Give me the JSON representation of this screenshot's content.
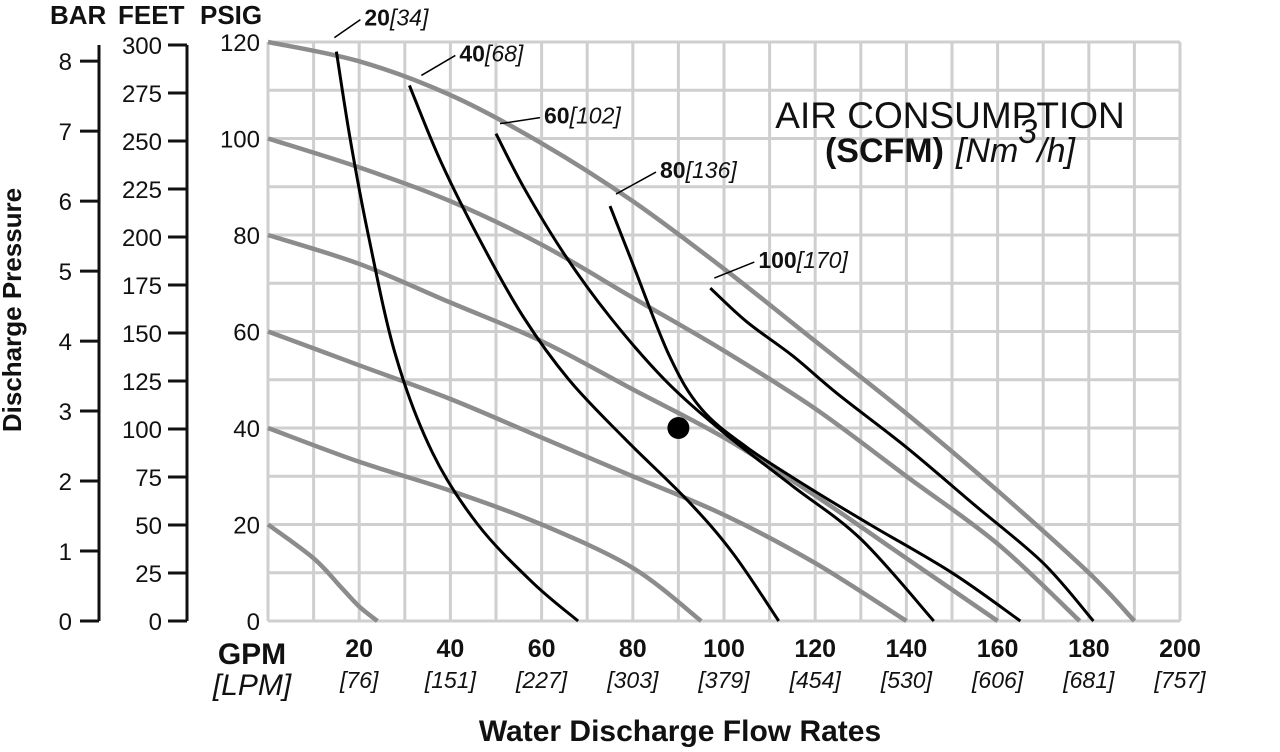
{
  "chart_data": {
    "type": "line",
    "title": "AIR CONSUMPTION",
    "subtitle_bold": "(SCFM)",
    "subtitle_italic": "[Nm³/h]",
    "xlabel": "Water Discharge Flow Rates",
    "ylabel": "Discharge Pressure",
    "x_unit_main": "GPM",
    "x_unit_sub": "[LPM]",
    "column_headers": [
      "BAR",
      "FEET",
      "PSIG"
    ],
    "xlim": [
      0,
      200
    ],
    "ylim": [
      0,
      120
    ],
    "grid": true,
    "x_ticks": [
      20,
      40,
      60,
      80,
      100,
      120,
      140,
      160,
      180,
      200
    ],
    "x_tick_labels": [
      "20",
      "40",
      "60",
      "80",
      "100",
      "120",
      "140",
      "160",
      "180",
      "200"
    ],
    "x_sub_ticks": [
      "[76]",
      "[151]",
      "[227]",
      "[303]",
      "[379]",
      "[454]",
      "[530]",
      "[606]",
      "[681]",
      "[757]"
    ],
    "psig_ticks": [
      0,
      20,
      40,
      60,
      80,
      100,
      120
    ],
    "feet_ticks": [
      0,
      25,
      50,
      75,
      100,
      125,
      150,
      175,
      200,
      225,
      250,
      275,
      300
    ],
    "bar_ticks": [
      0,
      1,
      2,
      3,
      4,
      5,
      6,
      7,
      8
    ],
    "pressure_curves": [
      {
        "x": [
          0,
          10,
          16,
          20,
          24
        ],
        "y": [
          20,
          13,
          7,
          3,
          0
        ]
      },
      {
        "x": [
          0,
          20,
          40,
          60,
          80,
          95
        ],
        "y": [
          40,
          33,
          27,
          20,
          11,
          0
        ]
      },
      {
        "x": [
          0,
          20,
          40,
          60,
          80,
          100,
          120,
          140
        ],
        "y": [
          60,
          53,
          46,
          38,
          30,
          22,
          12,
          0
        ]
      },
      {
        "x": [
          0,
          20,
          40,
          60,
          80,
          100,
          120,
          140,
          160
        ],
        "y": [
          80,
          74,
          66,
          58,
          48,
          38,
          26,
          13,
          0
        ]
      },
      {
        "x": [
          0,
          20,
          40,
          60,
          80,
          100,
          120,
          140,
          160,
          178
        ],
        "y": [
          100,
          94,
          87,
          78,
          67,
          56,
          44,
          30,
          16,
          0
        ]
      },
      {
        "x": [
          0,
          20,
          40,
          60,
          80,
          100,
          120,
          140,
          160,
          180,
          190
        ],
        "y": [
          120,
          116,
          109,
          99,
          87,
          73,
          58,
          43,
          27,
          10,
          0
        ]
      }
    ],
    "air_curves": [
      {
        "bold": "20",
        "italic": "[34]",
        "x": [
          15,
          18,
          22,
          28,
          36,
          46,
          58,
          68
        ],
        "y": [
          118,
          100,
          80,
          55,
          35,
          20,
          8,
          0
        ]
      },
      {
        "bold": "40",
        "italic": "[68]",
        "x": [
          31,
          38,
          47,
          56,
          66,
          78,
          92,
          102,
          112
        ],
        "y": [
          111,
          95,
          78,
          63,
          50,
          38,
          25,
          14,
          0
        ]
      },
      {
        "bold": "60",
        "italic": "[102]",
        "x": [
          50,
          56,
          65,
          75,
          87,
          100,
          115,
          130,
          146
        ],
        "y": [
          101,
          90,
          76,
          63,
          50,
          39,
          28,
          17,
          0
        ]
      },
      {
        "bold": "80",
        "italic": "[136]",
        "x": [
          75,
          80,
          88,
          95,
          105,
          118,
          132,
          150,
          165
        ],
        "y": [
          86,
          74,
          55,
          44,
          36,
          28,
          20,
          10,
          0
        ]
      },
      {
        "bold": "100",
        "italic": "[170]",
        "x": [
          97,
          105,
          115,
          125,
          140,
          155,
          170,
          181
        ],
        "y": [
          69,
          62,
          55,
          47,
          36,
          24,
          12,
          0
        ]
      }
    ],
    "example_point": {
      "x": 90,
      "y": 40
    }
  }
}
